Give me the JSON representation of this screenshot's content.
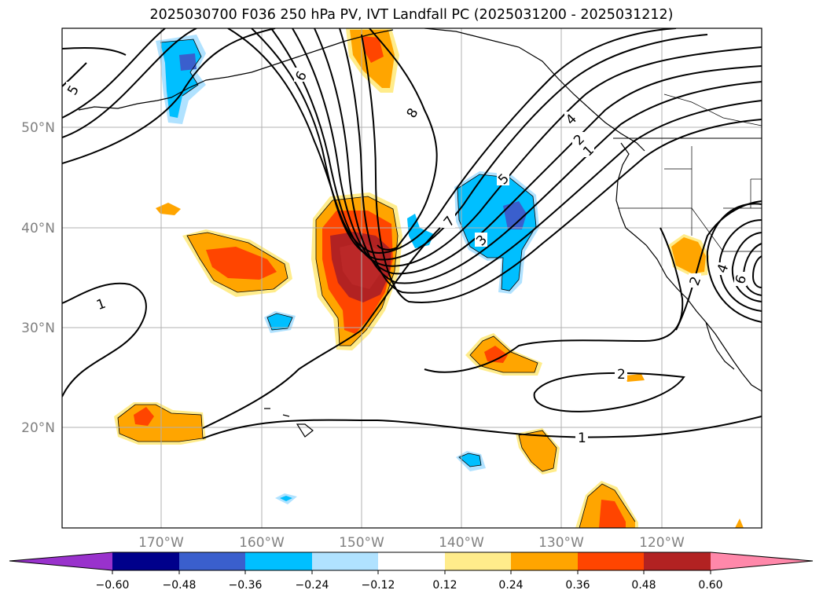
{
  "title": "2025030700 F036 250 hPa PV, IVT Landfall PC (2025031200 - 2025031212)",
  "map": {
    "lon_labels": [
      "170°W",
      "160°W",
      "150°W",
      "140°W",
      "130°W",
      "120°W"
    ],
    "lat_labels": [
      "50°N",
      "40°N",
      "30°N",
      "20°N"
    ],
    "contour_labels": [
      "5",
      "6",
      "8",
      "7",
      "5",
      "4",
      "3",
      "2",
      "1",
      "1",
      "2",
      "1",
      "2",
      "6",
      "4"
    ]
  },
  "colorbar": {
    "ticks": [
      "−0.60",
      "−0.48",
      "−0.36",
      "−0.24",
      "−0.12",
      "0.12",
      "0.24",
      "0.36",
      "0.48",
      "0.60"
    ],
    "colors": [
      "#9932cc",
      "#00008b",
      "#3a5fcd",
      "#00bfff",
      "#b0e2ff",
      "#ffffff",
      "#ffec8b",
      "#ffa500",
      "#ff4500",
      "#b22222",
      "#ff88aa"
    ]
  }
}
